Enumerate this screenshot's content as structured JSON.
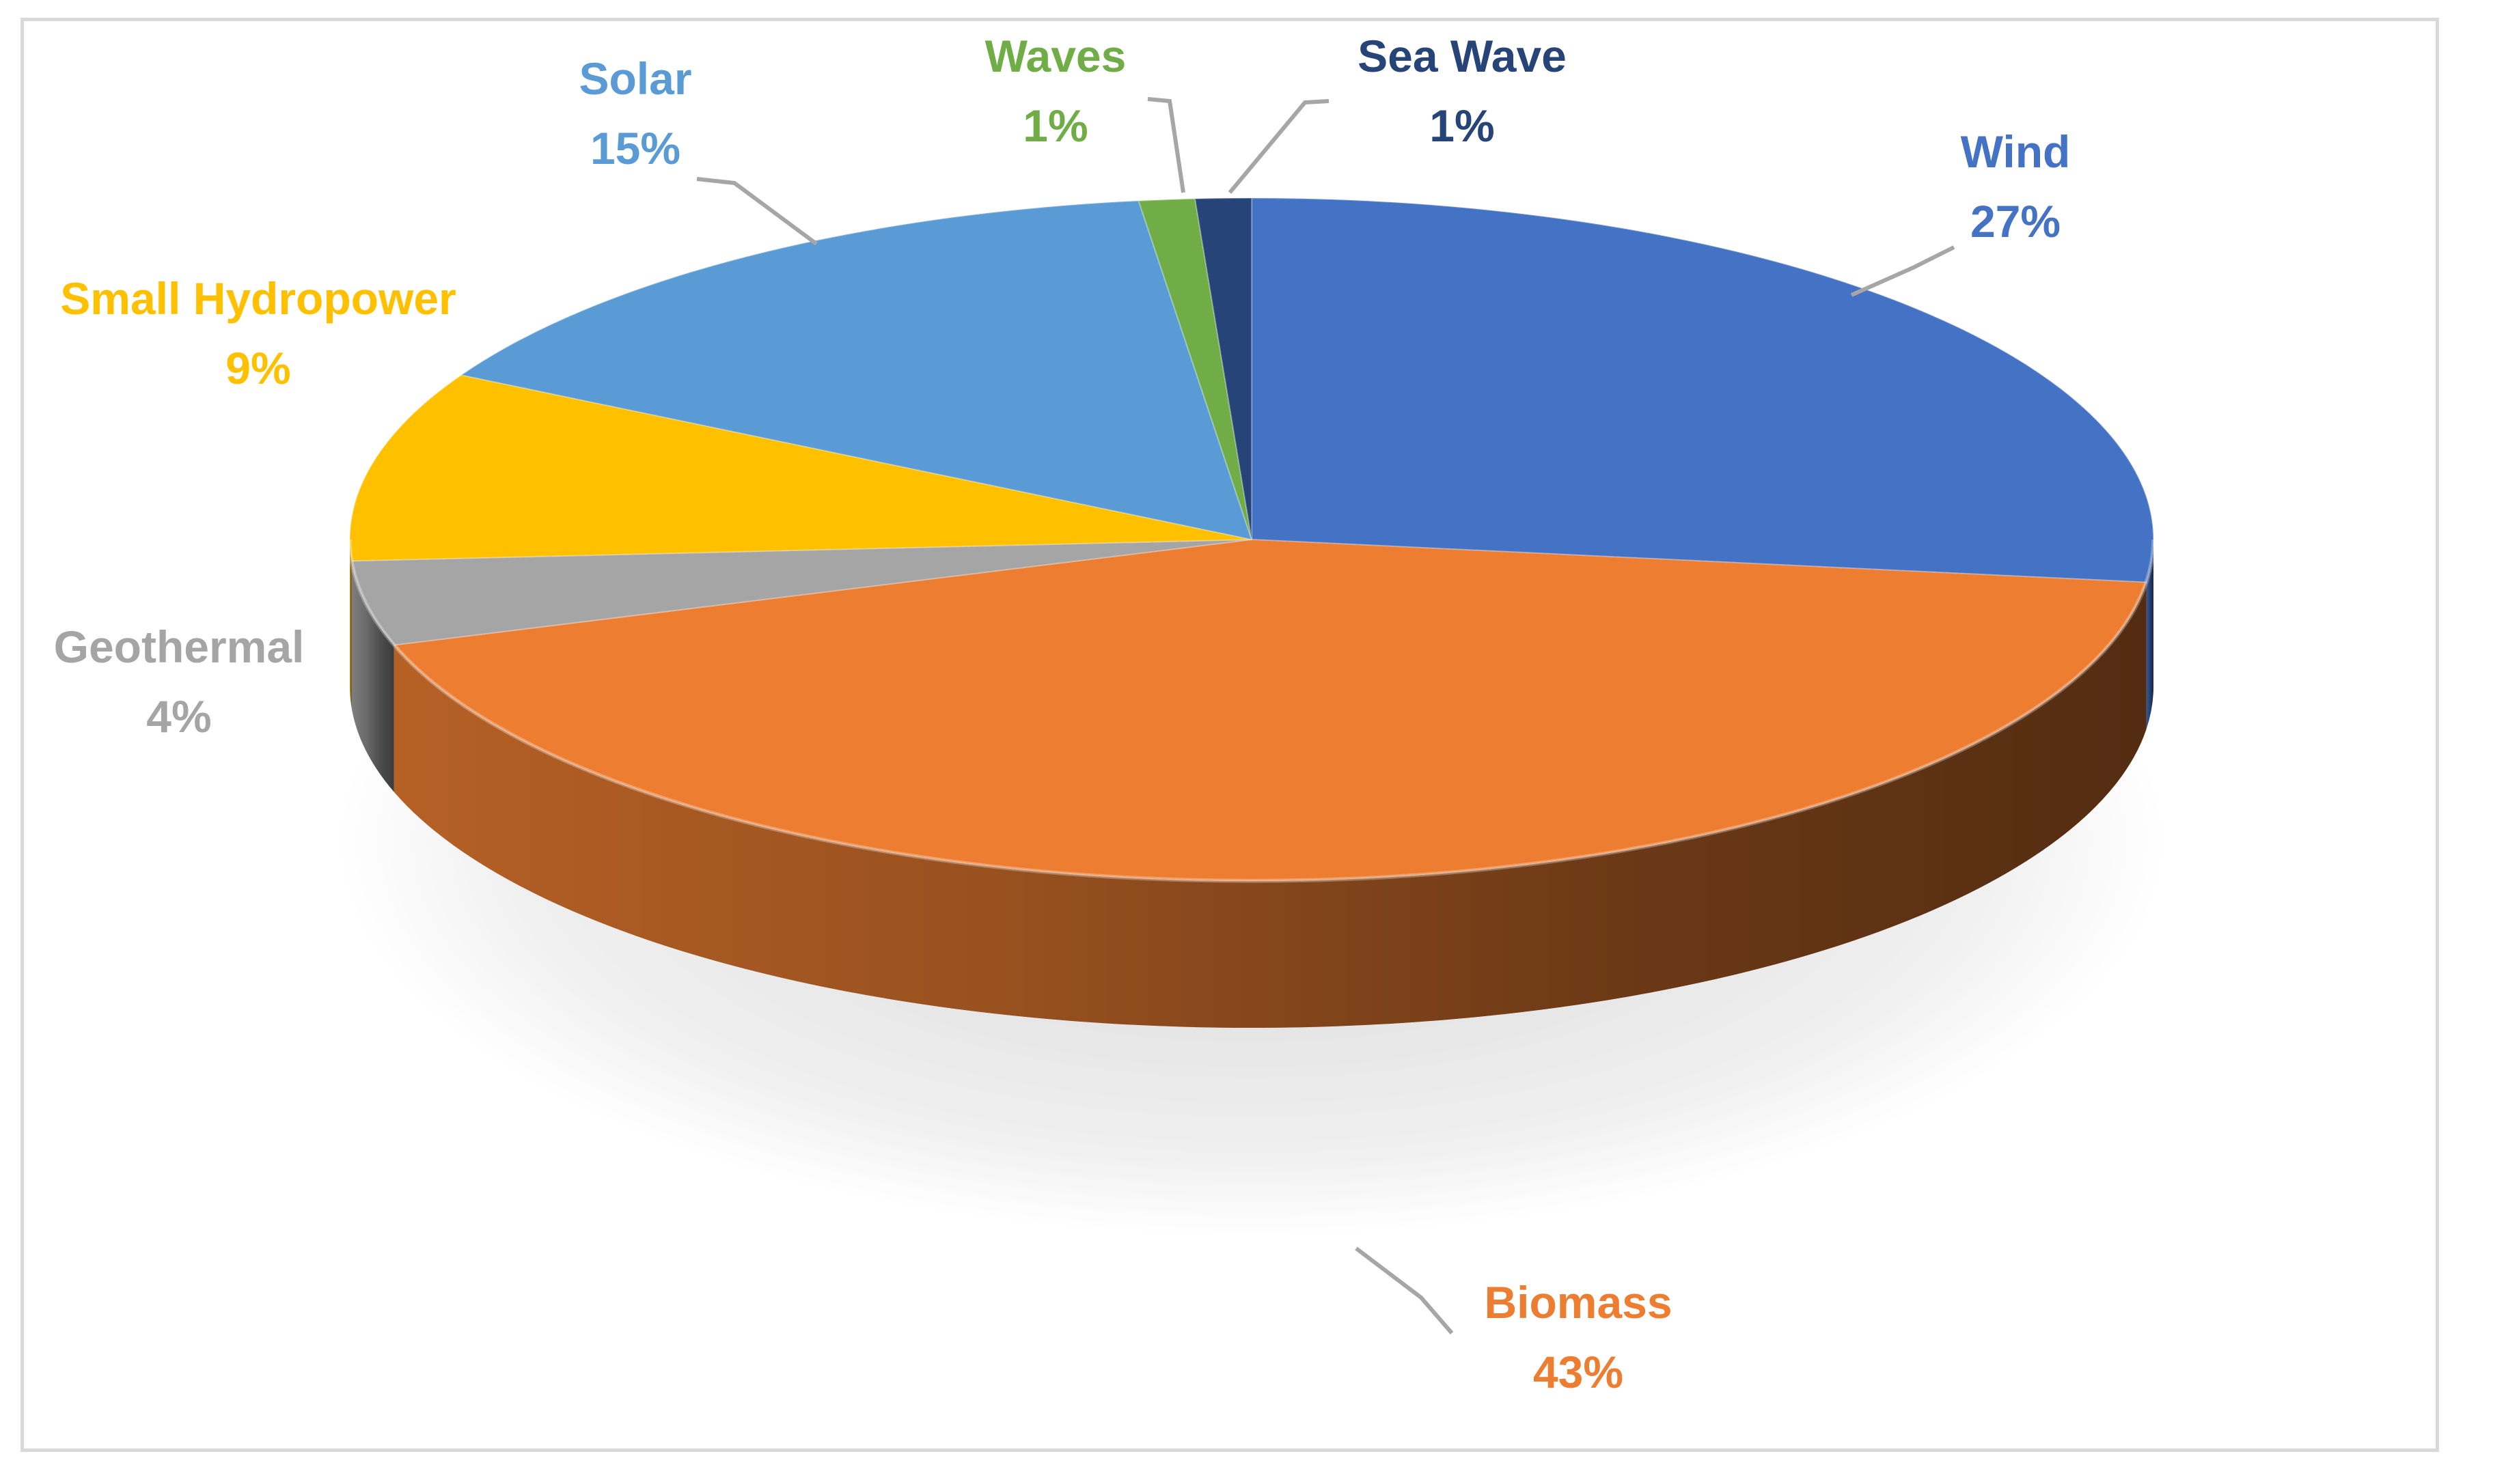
{
  "chart_data": {
    "type": "pie",
    "style": "3d",
    "title": "",
    "data_labels": "category-and-percent",
    "unit": "%",
    "slices": [
      {
        "name": "Wind",
        "value": 27,
        "label": "27%",
        "color": "#4472C4"
      },
      {
        "name": "Biomass",
        "value": 43,
        "label": "43%",
        "color": "#ED7D31"
      },
      {
        "name": "Geothermal",
        "value": 4,
        "label": "4%",
        "color": "#A5A5A5"
      },
      {
        "name": "Small Hydropower",
        "value": 9,
        "label": "9%",
        "color": "#FFC000"
      },
      {
        "name": "Solar",
        "value": 15,
        "label": "15%",
        "color": "#5B9BD5"
      },
      {
        "name": "Waves",
        "value": 1,
        "label": "1%",
        "color": "#70AD47"
      },
      {
        "name": "Sea Wave",
        "value": 1,
        "label": "1%",
        "color": "#264478"
      }
    ]
  }
}
